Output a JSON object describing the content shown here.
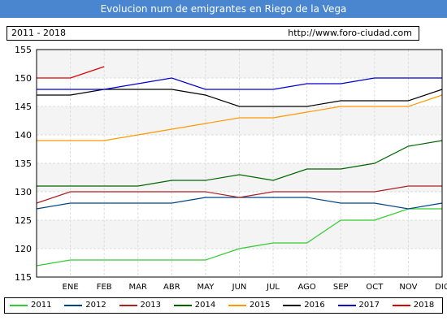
{
  "header": {
    "title": "Evolucion num de emigrantes en Riego de la Vega",
    "range": "2011 - 2018",
    "url": "http://www.foro-ciudad.com"
  },
  "chart_data": {
    "type": "line",
    "title": "Evolucion num de emigrantes en Riego de la Vega",
    "xlabel": "",
    "ylabel": "",
    "categories": [
      "",
      "ENE",
      "FEB",
      "MAR",
      "ABR",
      "MAY",
      "JUN",
      "JUL",
      "AGO",
      "SEP",
      "OCT",
      "NOV",
      "DIC"
    ],
    "ylim": [
      115,
      155
    ],
    "yticks": [
      115,
      120,
      125,
      130,
      135,
      140,
      145,
      150,
      155
    ],
    "grid": "horizontal",
    "legend_position": "bottom",
    "series": [
      {
        "name": "2011",
        "color": "#33cc33",
        "values": [
          117,
          118,
          118,
          118,
          118,
          118,
          120,
          121,
          121,
          125,
          125,
          127,
          127
        ]
      },
      {
        "name": "2012",
        "color": "#004488",
        "values": [
          127,
          128,
          128,
          128,
          128,
          129,
          129,
          129,
          129,
          128,
          128,
          127,
          128
        ]
      },
      {
        "name": "2013",
        "color": "#aa2222",
        "values": [
          128,
          130,
          130,
          130,
          130,
          130,
          129,
          130,
          130,
          130,
          130,
          131,
          131
        ]
      },
      {
        "name": "2014",
        "color": "#006600",
        "values": [
          131,
          131,
          131,
          131,
          132,
          132,
          133,
          132,
          134,
          134,
          135,
          138,
          139
        ]
      },
      {
        "name": "2015",
        "color": "#ff9900",
        "values": [
          139,
          139,
          139,
          140,
          141,
          142,
          143,
          143,
          144,
          145,
          145,
          145,
          147
        ]
      },
      {
        "name": "2016",
        "color": "#000000",
        "values": [
          147,
          147,
          148,
          148,
          148,
          147,
          145,
          145,
          145,
          146,
          146,
          146,
          148
        ]
      },
      {
        "name": "2017",
        "color": "#0000cc",
        "values": [
          148,
          148,
          148,
          149,
          150,
          148,
          148,
          148,
          149,
          149,
          150,
          150,
          150
        ]
      },
      {
        "name": "2018",
        "color": "#dd0000",
        "values": [
          150,
          150,
          152,
          null,
          null,
          null,
          null,
          null,
          null,
          null,
          null,
          null,
          null
        ]
      }
    ]
  }
}
